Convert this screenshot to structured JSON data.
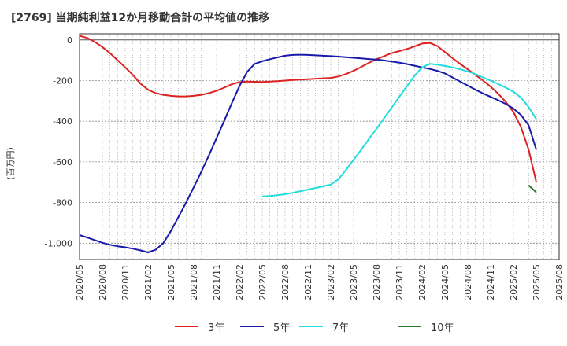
{
  "title": "[2769]  当期純利益12か月移動合計の平均値の推移",
  "chart_data": {
    "type": "line",
    "title": "[2769]  当期純利益12か月移動合計の平均値の推移",
    "ylabel": "(百万円)",
    "xlabel": "",
    "ylim": [
      -1080,
      30
    ],
    "xlim": [
      "2020-05",
      "2025-08"
    ],
    "yticks": [
      0,
      -200,
      -400,
      -600,
      -800,
      -1000
    ],
    "ytick_labels": [
      "0",
      "-200",
      "-400",
      "-600",
      "-800",
      "-1,000"
    ],
    "xticks": [
      "2020/05",
      "2020/08",
      "2020/11",
      "2021/02",
      "2021/05",
      "2021/08",
      "2021/11",
      "2022/02",
      "2022/05",
      "2022/08",
      "2022/11",
      "2023/02",
      "2023/05",
      "2023/08",
      "2023/11",
      "2024/02",
      "2024/05",
      "2024/08",
      "2024/11",
      "2025/02",
      "2025/05",
      "2025/08"
    ],
    "grid": true,
    "legend_position": "bottom",
    "series": [
      {
        "name": "3年",
        "color": "#dd2222",
        "points": [
          [
            "2020-05",
            20
          ],
          [
            "2020-06",
            10
          ],
          [
            "2020-07",
            -10
          ],
          [
            "2020-08",
            -35
          ],
          [
            "2020-09",
            -65
          ],
          [
            "2020-10",
            -100
          ],
          [
            "2020-11",
            -135
          ],
          [
            "2020-12",
            -172
          ],
          [
            "2021-01",
            -215
          ],
          [
            "2021-02",
            -245
          ],
          [
            "2021-03",
            -262
          ],
          [
            "2021-04",
            -270
          ],
          [
            "2021-05",
            -275
          ],
          [
            "2021-06",
            -278
          ],
          [
            "2021-07",
            -278
          ],
          [
            "2021-08",
            -275
          ],
          [
            "2021-09",
            -270
          ],
          [
            "2021-10",
            -262
          ],
          [
            "2021-11",
            -250
          ],
          [
            "2021-12",
            -235
          ],
          [
            "2022-01",
            -218
          ],
          [
            "2022-02",
            -208
          ],
          [
            "2022-03",
            -205
          ],
          [
            "2022-04",
            -206
          ],
          [
            "2022-05",
            -207
          ],
          [
            "2022-06",
            -205
          ],
          [
            "2022-07",
            -203
          ],
          [
            "2022-08",
            -200
          ],
          [
            "2022-09",
            -197
          ],
          [
            "2022-10",
            -195
          ],
          [
            "2022-11",
            -193
          ],
          [
            "2022-12",
            -191
          ],
          [
            "2023-01",
            -189
          ],
          [
            "2023-02",
            -187
          ],
          [
            "2023-03",
            -180
          ],
          [
            "2023-04",
            -168
          ],
          [
            "2023-05",
            -152
          ],
          [
            "2023-06",
            -133
          ],
          [
            "2023-07",
            -113
          ],
          [
            "2023-08",
            -95
          ],
          [
            "2023-09",
            -80
          ],
          [
            "2023-10",
            -65
          ],
          [
            "2023-11",
            -55
          ],
          [
            "2023-12",
            -45
          ],
          [
            "2024-01",
            -32
          ],
          [
            "2024-02",
            -18
          ],
          [
            "2024-03",
            -15
          ],
          [
            "2024-04",
            -30
          ],
          [
            "2024-05",
            -60
          ],
          [
            "2024-06",
            -90
          ],
          [
            "2024-07",
            -118
          ],
          [
            "2024-08",
            -145
          ],
          [
            "2024-09",
            -172
          ],
          [
            "2024-10",
            -200
          ],
          [
            "2024-11",
            -230
          ],
          [
            "2024-12",
            -265
          ],
          [
            "2025-01",
            -305
          ],
          [
            "2025-02",
            -355
          ],
          [
            "2025-03",
            -430
          ],
          [
            "2025-04",
            -540
          ],
          [
            "2025-05",
            -700
          ]
        ]
      },
      {
        "name": "5年",
        "color": "#1a1aaa",
        "points": [
          [
            "2020-05",
            -960
          ],
          [
            "2020-06",
            -972
          ],
          [
            "2020-07",
            -985
          ],
          [
            "2020-08",
            -998
          ],
          [
            "2020-09",
            -1008
          ],
          [
            "2020-10",
            -1015
          ],
          [
            "2020-11",
            -1020
          ],
          [
            "2020-12",
            -1027
          ],
          [
            "2021-01",
            -1035
          ],
          [
            "2021-02",
            -1045
          ],
          [
            "2021-03",
            -1032
          ],
          [
            "2021-04",
            -1000
          ],
          [
            "2021-05",
            -940
          ],
          [
            "2021-06",
            -870
          ],
          [
            "2021-07",
            -800
          ],
          [
            "2021-08",
            -725
          ],
          [
            "2021-09",
            -648
          ],
          [
            "2021-10",
            -568
          ],
          [
            "2021-11",
            -483
          ],
          [
            "2021-12",
            -398
          ],
          [
            "2022-01",
            -312
          ],
          [
            "2022-02",
            -228
          ],
          [
            "2022-03",
            -158
          ],
          [
            "2022-04",
            -118
          ],
          [
            "2022-05",
            -105
          ],
          [
            "2022-06",
            -95
          ],
          [
            "2022-07",
            -86
          ],
          [
            "2022-08",
            -78
          ],
          [
            "2022-09",
            -74
          ],
          [
            "2022-10",
            -73
          ],
          [
            "2022-11",
            -74
          ],
          [
            "2022-12",
            -76
          ],
          [
            "2023-01",
            -78
          ],
          [
            "2023-02",
            -80
          ],
          [
            "2023-03",
            -82
          ],
          [
            "2023-04",
            -85
          ],
          [
            "2023-05",
            -88
          ],
          [
            "2023-06",
            -91
          ],
          [
            "2023-07",
            -94
          ],
          [
            "2023-08",
            -97
          ],
          [
            "2023-09",
            -101
          ],
          [
            "2023-10",
            -106
          ],
          [
            "2023-11",
            -112
          ],
          [
            "2023-12",
            -119
          ],
          [
            "2024-01",
            -127
          ],
          [
            "2024-02",
            -135
          ],
          [
            "2024-03",
            -143
          ],
          [
            "2024-04",
            -152
          ],
          [
            "2024-05",
            -165
          ],
          [
            "2024-06",
            -185
          ],
          [
            "2024-07",
            -205
          ],
          [
            "2024-08",
            -225
          ],
          [
            "2024-09",
            -245
          ],
          [
            "2024-10",
            -263
          ],
          [
            "2024-11",
            -280
          ],
          [
            "2024-12",
            -297
          ],
          [
            "2025-01",
            -315
          ],
          [
            "2025-02",
            -338
          ],
          [
            "2025-03",
            -370
          ],
          [
            "2025-04",
            -420
          ],
          [
            "2025-05",
            -540
          ]
        ]
      },
      {
        "name": "7年",
        "color": "#22dddd",
        "points": [
          [
            "2022-05",
            -770
          ],
          [
            "2022-06",
            -768
          ],
          [
            "2022-07",
            -764
          ],
          [
            "2022-08",
            -759
          ],
          [
            "2022-09",
            -752
          ],
          [
            "2022-10",
            -744
          ],
          [
            "2022-11",
            -736
          ],
          [
            "2022-12",
            -728
          ],
          [
            "2023-01",
            -720
          ],
          [
            "2023-02",
            -712
          ],
          [
            "2023-03",
            -685
          ],
          [
            "2023-04",
            -640
          ],
          [
            "2023-05",
            -590
          ],
          [
            "2023-06",
            -540
          ],
          [
            "2023-07",
            -488
          ],
          [
            "2023-08",
            -438
          ],
          [
            "2023-09",
            -385
          ],
          [
            "2023-10",
            -333
          ],
          [
            "2023-11",
            -280
          ],
          [
            "2023-12",
            -228
          ],
          [
            "2024-01",
            -177
          ],
          [
            "2024-02",
            -135
          ],
          [
            "2024-03",
            -118
          ],
          [
            "2024-04",
            -122
          ],
          [
            "2024-05",
            -128
          ],
          [
            "2024-06",
            -135
          ],
          [
            "2024-07",
            -145
          ],
          [
            "2024-08",
            -155
          ],
          [
            "2024-09",
            -168
          ],
          [
            "2024-10",
            -185
          ],
          [
            "2024-11",
            -200
          ],
          [
            "2024-12",
            -217
          ],
          [
            "2025-01",
            -235
          ],
          [
            "2025-02",
            -255
          ],
          [
            "2025-03",
            -285
          ],
          [
            "2025-04",
            -330
          ],
          [
            "2025-05",
            -390
          ]
        ]
      },
      {
        "name": "10年",
        "color": "#2a7a2a",
        "points": [
          [
            "2025-04",
            -715
          ],
          [
            "2025-05",
            -750
          ]
        ]
      }
    ]
  }
}
